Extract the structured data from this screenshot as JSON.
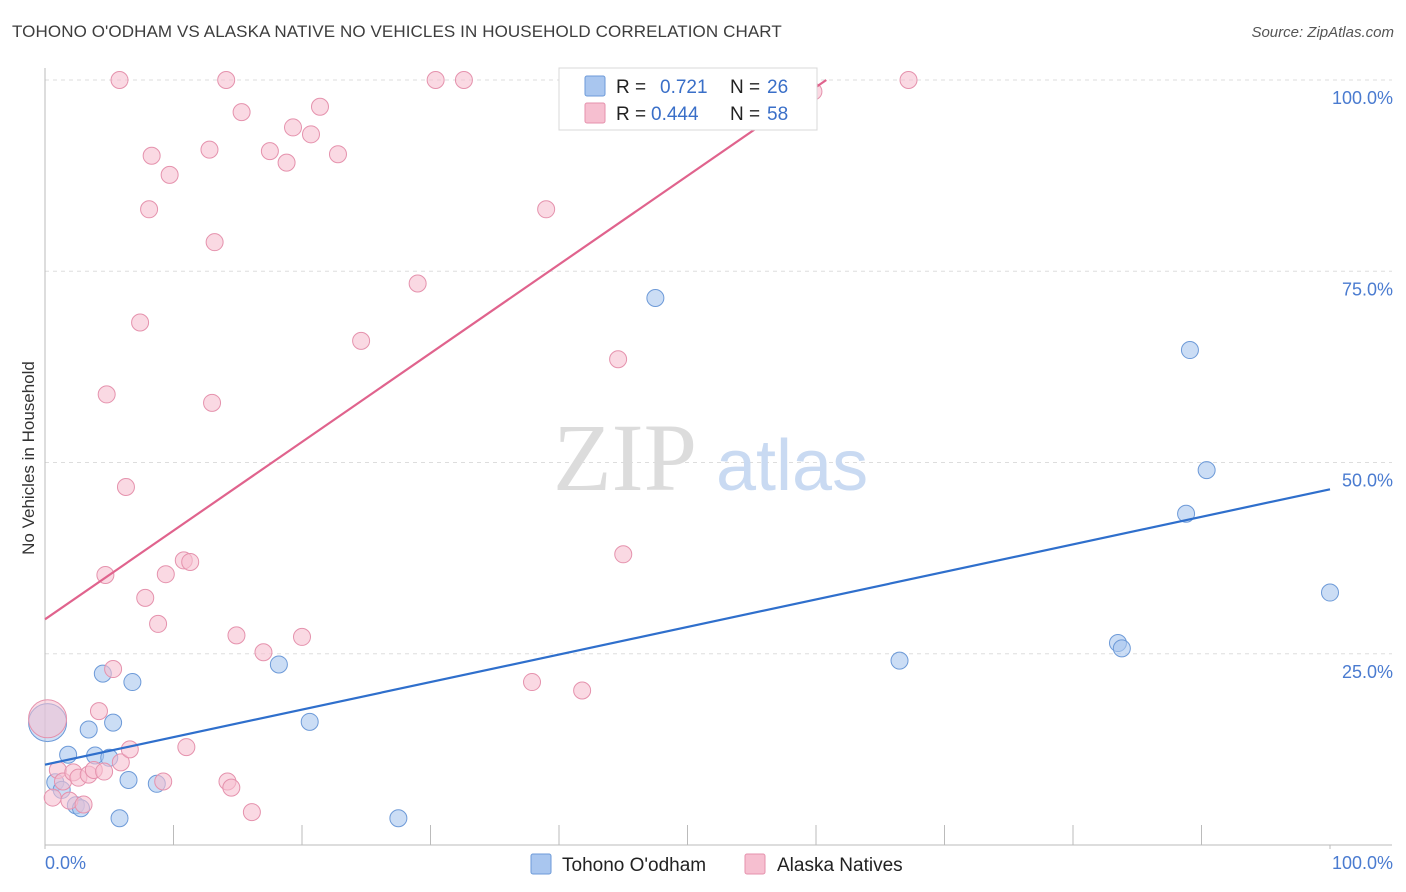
{
  "title": "TOHONO O'ODHAM VS ALASKA NATIVE NO VEHICLES IN HOUSEHOLD CORRELATION CHART",
  "source": "Source: ZipAtlas.com",
  "watermark": {
    "zip": "ZIP",
    "atlas": "atlas"
  },
  "colors": {
    "blue_fill": "#a9c6ef",
    "blue_stroke": "#6d9ad8",
    "blue_line": "#2f6fcc",
    "pink_fill": "#f6bfd0",
    "pink_stroke": "#e592ad",
    "pink_line": "#e0638d",
    "grid": "#dddddd",
    "axis_text": "#4a7bd0"
  },
  "legend": {
    "r_label": "R =",
    "n_label": "N =",
    "blue": {
      "r": "0.721",
      "n": "26"
    },
    "pink": {
      "r": "0.444",
      "n": "58"
    }
  },
  "chart_data": {
    "type": "scatter",
    "title": "TOHONO O'ODHAM VS ALASKA NATIVE NO VEHICLES IN HOUSEHOLD CORRELATION CHART",
    "xlabel": "",
    "ylabel": "No Vehicles in Household",
    "xlim": [
      0,
      100
    ],
    "ylim": [
      0,
      100
    ],
    "x_tick_labels": [
      "0.0%",
      "100.0%"
    ],
    "y_tick_labels": [
      "25.0%",
      "50.0%",
      "75.0%",
      "100.0%"
    ],
    "y_tick_values": [
      25,
      50,
      75,
      100
    ],
    "grid": true,
    "series": [
      {
        "name": "Tohono O'odham",
        "color": "blue",
        "trend": {
          "x": [
            0,
            100
          ],
          "y": [
            10.5,
            46.5
          ]
        },
        "points": [
          {
            "x": 0.2,
            "y": 16,
            "big": true
          },
          {
            "x": 0.8,
            "y": 8.2
          },
          {
            "x": 1.3,
            "y": 7.2
          },
          {
            "x": 1.8,
            "y": 11.8
          },
          {
            "x": 2.4,
            "y": 5.2
          },
          {
            "x": 2.8,
            "y": 4.8
          },
          {
            "x": 3.4,
            "y": 15.1
          },
          {
            "x": 3.9,
            "y": 11.7
          },
          {
            "x": 4.5,
            "y": 22.4
          },
          {
            "x": 5.0,
            "y": 11.4
          },
          {
            "x": 5.3,
            "y": 16.0
          },
          {
            "x": 5.8,
            "y": 3.5
          },
          {
            "x": 6.5,
            "y": 8.5
          },
          {
            "x": 6.8,
            "y": 21.3
          },
          {
            "x": 8.7,
            "y": 8.0
          },
          {
            "x": 18.2,
            "y": 23.6
          },
          {
            "x": 20.6,
            "y": 16.1
          },
          {
            "x": 27.5,
            "y": 3.5
          },
          {
            "x": 47.5,
            "y": 71.5
          },
          {
            "x": 66.5,
            "y": 24.1
          },
          {
            "x": 83.5,
            "y": 26.4
          },
          {
            "x": 83.8,
            "y": 25.7
          },
          {
            "x": 88.8,
            "y": 43.3
          },
          {
            "x": 89.1,
            "y": 64.7
          },
          {
            "x": 90.4,
            "y": 49.0
          },
          {
            "x": 100.0,
            "y": 33.0
          }
        ]
      },
      {
        "name": "Alaska Natives",
        "color": "pink",
        "trend": {
          "x": [
            0,
            60.8
          ],
          "y": [
            29.5,
            100
          ]
        },
        "points": [
          {
            "x": 0.2,
            "y": 16.5,
            "big": true
          },
          {
            "x": 0.6,
            "y": 6.2
          },
          {
            "x": 1.0,
            "y": 9.8
          },
          {
            "x": 1.4,
            "y": 8.3
          },
          {
            "x": 1.9,
            "y": 5.8
          },
          {
            "x": 2.2,
            "y": 9.5
          },
          {
            "x": 2.6,
            "y": 8.8
          },
          {
            "x": 3.0,
            "y": 5.3
          },
          {
            "x": 3.4,
            "y": 9.2
          },
          {
            "x": 3.8,
            "y": 9.8
          },
          {
            "x": 4.2,
            "y": 17.5
          },
          {
            "x": 4.6,
            "y": 9.6
          },
          {
            "x": 4.7,
            "y": 35.3
          },
          {
            "x": 4.8,
            "y": 58.9
          },
          {
            "x": 5.3,
            "y": 23.0
          },
          {
            "x": 5.8,
            "y": 100
          },
          {
            "x": 5.9,
            "y": 10.8
          },
          {
            "x": 6.3,
            "y": 46.8
          },
          {
            "x": 6.6,
            "y": 12.5
          },
          {
            "x": 7.4,
            "y": 68.3
          },
          {
            "x": 7.8,
            "y": 32.3
          },
          {
            "x": 8.1,
            "y": 83.1
          },
          {
            "x": 8.3,
            "y": 90.1
          },
          {
            "x": 8.8,
            "y": 28.9
          },
          {
            "x": 9.2,
            "y": 8.3
          },
          {
            "x": 9.4,
            "y": 35.4
          },
          {
            "x": 9.7,
            "y": 87.6
          },
          {
            "x": 10.8,
            "y": 37.2
          },
          {
            "x": 11.0,
            "y": 12.8
          },
          {
            "x": 11.3,
            "y": 37.0
          },
          {
            "x": 12.8,
            "y": 90.9
          },
          {
            "x": 13.0,
            "y": 57.8
          },
          {
            "x": 13.2,
            "y": 78.8
          },
          {
            "x": 14.1,
            "y": 100
          },
          {
            "x": 14.2,
            "y": 8.3
          },
          {
            "x": 14.5,
            "y": 7.5
          },
          {
            "x": 14.9,
            "y": 27.4
          },
          {
            "x": 15.3,
            "y": 95.8
          },
          {
            "x": 16.1,
            "y": 4.3
          },
          {
            "x": 17.0,
            "y": 25.2
          },
          {
            "x": 17.5,
            "y": 90.7
          },
          {
            "x": 18.8,
            "y": 89.2
          },
          {
            "x": 19.3,
            "y": 93.8
          },
          {
            "x": 20.0,
            "y": 27.2
          },
          {
            "x": 20.7,
            "y": 92.9
          },
          {
            "x": 21.4,
            "y": 96.5
          },
          {
            "x": 22.8,
            "y": 90.3
          },
          {
            "x": 24.6,
            "y": 65.9
          },
          {
            "x": 29.0,
            "y": 73.4
          },
          {
            "x": 30.4,
            "y": 100
          },
          {
            "x": 32.6,
            "y": 100
          },
          {
            "x": 37.9,
            "y": 21.3
          },
          {
            "x": 39.0,
            "y": 83.1
          },
          {
            "x": 41.8,
            "y": 20.2
          },
          {
            "x": 44.6,
            "y": 63.5
          },
          {
            "x": 45.0,
            "y": 38.0
          },
          {
            "x": 59.8,
            "y": 98.5
          },
          {
            "x": 67.2,
            "y": 100
          }
        ]
      }
    ]
  },
  "bottom_legend": {
    "blue": "Tohono O'odham",
    "pink": "Alaska Natives"
  }
}
